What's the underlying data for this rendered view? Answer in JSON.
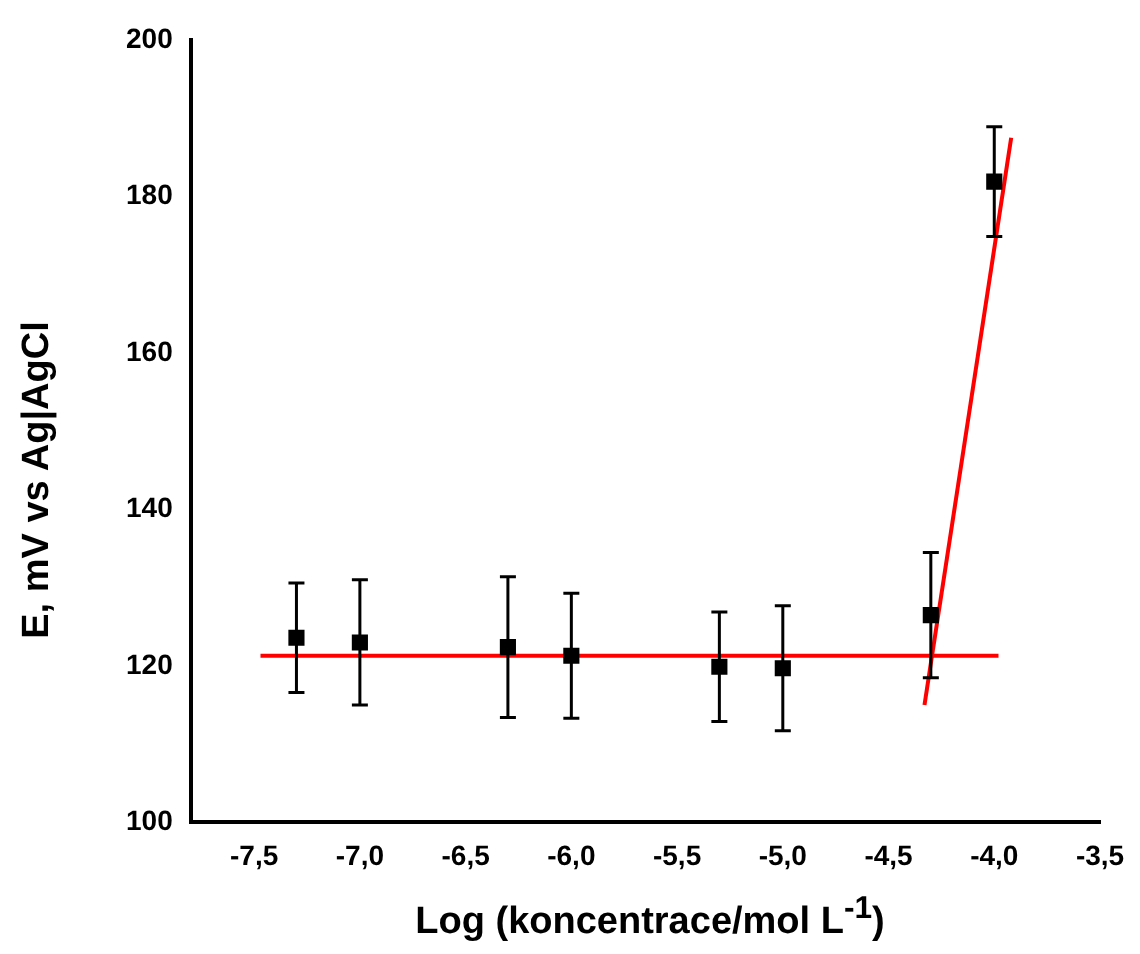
{
  "chart_data": {
    "type": "scatter",
    "xlabel": "Log (koncentrace/mol L$^{-1}$)",
    "ylabel": "E, mV vs Ag|AgCl",
    "marker": "square",
    "grid": false,
    "xlim": [
      -7.8,
      -3.5
    ],
    "xticks": [
      {
        "value": -7.5,
        "label": "-7,5"
      },
      {
        "value": -7,
        "label": "-7,0"
      },
      {
        "value": -6.5,
        "label": "-6,5"
      },
      {
        "value": -6,
        "label": "-6,0"
      },
      {
        "value": -5.5,
        "label": "-5,5"
      },
      {
        "value": -5,
        "label": "-5,0"
      },
      {
        "value": -4.5,
        "label": "-4,5"
      },
      {
        "value": -4,
        "label": "-4,0"
      },
      {
        "value": -3.5,
        "label": "-3,5"
      }
    ],
    "ylim": [
      100,
      200
    ],
    "yticks": [
      100,
      120,
      140,
      160,
      180,
      200
    ],
    "series": [
      {
        "type": "scatter",
        "color": "#000000",
        "x": [
          -7.3,
          -7.0,
          -6.3,
          -6.0,
          -5.3,
          -5.0,
          -4.3,
          -4.0
        ],
        "values": [
          123.6,
          123.0,
          122.4,
          121.3,
          119.9,
          119.7,
          126.5,
          181.9
        ],
        "errors": [
          7,
          8,
          9,
          8,
          7,
          8,
          8,
          7
        ]
      },
      {
        "type": "line",
        "color": "#ff0000",
        "marker": "none",
        "x": [
          -7.47,
          -3.98
        ],
        "values": [
          121.3,
          121.3
        ]
      },
      {
        "type": "line",
        "color": "#ff0000",
        "marker": "none",
        "x": [
          -4.33,
          -3.92
        ],
        "values": [
          115.0,
          187.5
        ]
      }
    ]
  }
}
